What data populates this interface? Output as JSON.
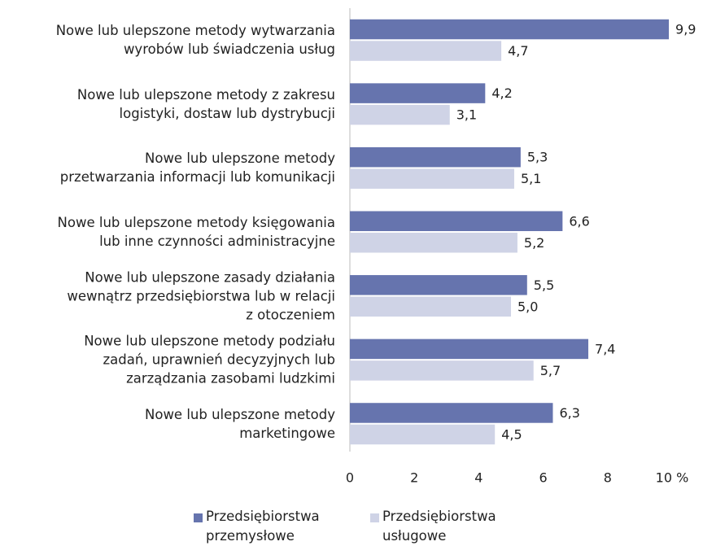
{
  "chart_data": {
    "type": "bar",
    "orientation": "horizontal",
    "categories": [
      "Nowe lub ulepszone metody wytwarzania\nwyrobów lub świadczenia usług",
      "Nowe lub ulepszone metody z zakresu\nlogistyki, dostaw lub dystrybucji",
      "Nowe lub ulepszone metody\nprzetwarzania informacji lub komunikacji",
      "Nowe lub ulepszone metody księgowania\nlub inne czynności administracyjne",
      "Nowe lub ulepszone zasady działania\nwewnątrz przedsiębiorstwa lub w relacji\nz otoczeniem",
      "Nowe lub ulepszone metody podziału\nzadań, uprawnień decyzyjnych lub\nzarządzania zasobami ludzkimi",
      "Nowe lub ulepszone metody\nmarketingowe"
    ],
    "series": [
      {
        "name": "Przedsiębiorstwa\nprzemysłowe",
        "color": "#6674ae",
        "values": [
          9.9,
          4.2,
          5.3,
          6.6,
          5.5,
          7.4,
          6.3
        ],
        "value_labels": [
          "9,9",
          "4,2",
          "5,3",
          "6,6",
          "5,5",
          "7,4",
          "6,3"
        ]
      },
      {
        "name": "Przedsiębiorstwa\nusługowe",
        "color": "#cfd3e6",
        "values": [
          4.7,
          3.1,
          5.1,
          5.2,
          5.0,
          5.7,
          4.5
        ],
        "value_labels": [
          "4,7",
          "3,1",
          "5,1",
          "5,2",
          "5,0",
          "5,7",
          "4,5"
        ]
      }
    ],
    "xlim": [
      0,
      10
    ],
    "xticks": [
      0,
      2,
      4,
      6,
      8,
      {
        "value": 10,
        "label": "10 %"
      }
    ],
    "legend": "bottom"
  }
}
